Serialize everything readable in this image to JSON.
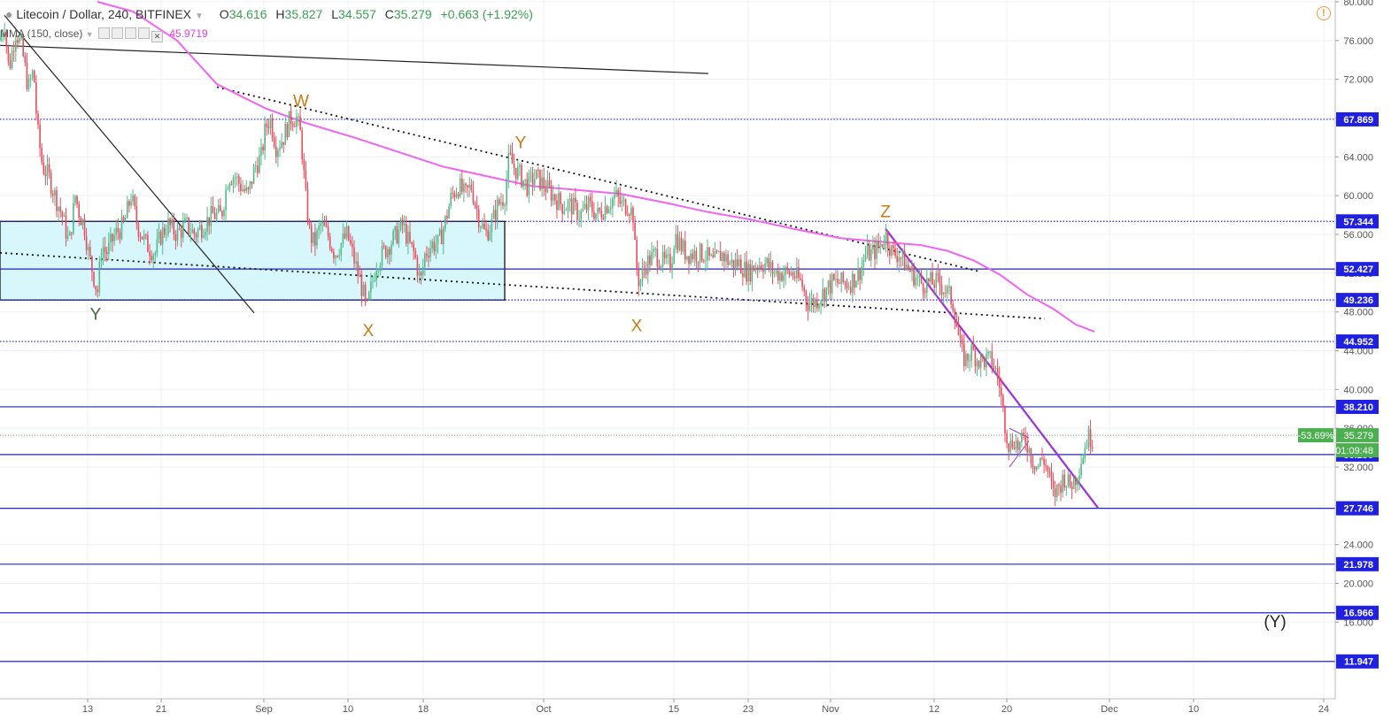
{
  "header": {
    "symbol": "Litecoin / Dollar, 240, BITFINEX",
    "open_label": "O",
    "open": "34.616",
    "high_label": "H",
    "high": "35.827",
    "low_label": "L",
    "low": "34.557",
    "close_label": "C",
    "close": "35.279",
    "change": "+0.663 (+1.92%)"
  },
  "indicator": {
    "label": "MMA (150, close)",
    "value": "45.9719"
  },
  "colors": {
    "up": "#53b987",
    "down": "#eb4d5c",
    "hline": "#2020e0",
    "ma": "#f263f2",
    "trend_purple": "#9b30e0",
    "box_fill": "#d8f7fc",
    "wave_orange": "#c87b12",
    "wave_green": "#3f6e3a",
    "badge_green": "#4caf50"
  },
  "chart_data": {
    "type": "candlestick",
    "title": "Litecoin / Dollar, 240, BITFINEX",
    "ylim": [
      8,
      80
    ],
    "y_ticks": [
      80,
      76,
      72,
      68,
      64,
      60,
      56,
      52,
      48,
      44,
      40,
      36,
      32,
      28,
      24,
      20,
      16
    ],
    "x_ticks": [
      "13",
      "21",
      "Sep",
      "10",
      "18",
      "Oct",
      "15",
      "23",
      "Nov",
      "12",
      "20",
      "Dec",
      "10",
      "24"
    ],
    "price_levels": [
      67.869,
      57.344,
      52.427,
      49.236,
      44.952,
      38.21,
      33.29,
      27.746,
      21.978,
      16.966,
      11.947
    ],
    "last_price": {
      "value": "35.279",
      "change": "-53.69%",
      "countdown": "01:09:48"
    },
    "wave_labels": [
      "W",
      "X",
      "Y",
      "X",
      "Y",
      "Z",
      "(Y)"
    ],
    "price_path": [
      [
        0,
        76
      ],
      [
        5,
        78
      ],
      [
        10,
        73
      ],
      [
        18,
        77
      ],
      [
        25,
        75
      ],
      [
        32,
        71
      ],
      [
        38,
        73
      ],
      [
        42,
        67
      ],
      [
        48,
        63
      ],
      [
        55,
        62
      ],
      [
        62,
        60
      ],
      [
        70,
        58
      ],
      [
        78,
        55
      ],
      [
        85,
        60
      ],
      [
        90,
        58
      ],
      [
        95,
        57
      ],
      [
        100,
        54
      ],
      [
        105,
        52
      ],
      [
        110,
        50
      ],
      [
        115,
        55
      ],
      [
        120,
        54
      ],
      [
        130,
        56
      ],
      [
        140,
        57
      ],
      [
        148,
        60
      ],
      [
        155,
        57
      ],
      [
        165,
        55
      ],
      [
        175,
        54
      ],
      [
        182,
        56
      ],
      [
        190,
        57
      ],
      [
        200,
        56
      ],
      [
        210,
        57
      ],
      [
        220,
        56
      ],
      [
        230,
        57
      ],
      [
        240,
        58
      ],
      [
        250,
        58
      ],
      [
        258,
        62
      ],
      [
        265,
        62
      ],
      [
        272,
        61
      ],
      [
        280,
        60
      ],
      [
        288,
        63
      ],
      [
        295,
        64
      ],
      [
        300,
        67
      ],
      [
        305,
        68
      ],
      [
        312,
        65
      ],
      [
        320,
        66
      ],
      [
        328,
        68
      ],
      [
        335,
        68
      ],
      [
        340,
        66
      ],
      [
        345,
        60
      ],
      [
        350,
        56
      ],
      [
        355,
        55
      ],
      [
        362,
        57
      ],
      [
        370,
        56
      ],
      [
        378,
        54
      ],
      [
        385,
        55
      ],
      [
        392,
        56
      ],
      [
        398,
        54
      ],
      [
        404,
        52
      ],
      [
        410,
        50
      ],
      [
        414,
        48
      ],
      [
        418,
        50
      ],
      [
        425,
        53
      ],
      [
        432,
        54
      ],
      [
        440,
        55
      ],
      [
        448,
        56
      ],
      [
        455,
        57
      ],
      [
        462,
        55
      ],
      [
        468,
        54
      ],
      [
        475,
        51
      ],
      [
        480,
        54
      ],
      [
        488,
        55
      ],
      [
        495,
        55
      ],
      [
        502,
        57
      ],
      [
        510,
        60
      ],
      [
        518,
        61
      ],
      [
        525,
        60
      ],
      [
        532,
        61
      ],
      [
        540,
        58
      ],
      [
        548,
        56
      ],
      [
        555,
        57
      ],
      [
        562,
        59
      ],
      [
        570,
        60
      ],
      [
        575,
        64
      ],
      [
        580,
        63
      ],
      [
        588,
        62
      ],
      [
        595,
        61
      ],
      [
        605,
        62
      ],
      [
        615,
        61
      ],
      [
        625,
        60
      ],
      [
        635,
        59
      ],
      [
        645,
        59
      ],
      [
        655,
        58
      ],
      [
        665,
        59
      ],
      [
        675,
        58
      ],
      [
        685,
        59
      ],
      [
        695,
        60
      ],
      [
        702,
        59
      ],
      [
        710,
        59
      ],
      [
        715,
        58
      ],
      [
        718,
        53
      ],
      [
        722,
        51
      ],
      [
        730,
        53
      ],
      [
        740,
        54
      ],
      [
        750,
        53
      ],
      [
        758,
        53
      ],
      [
        762,
        56
      ],
      [
        768,
        55
      ],
      [
        775,
        54
      ],
      [
        785,
        54
      ],
      [
        795,
        54
      ],
      [
        805,
        53
      ],
      [
        815,
        54
      ],
      [
        825,
        53
      ],
      [
        835,
        53
      ],
      [
        845,
        52
      ],
      [
        855,
        53
      ],
      [
        865,
        53
      ],
      [
        875,
        52
      ],
      [
        885,
        52
      ],
      [
        895,
        52
      ],
      [
        905,
        51
      ],
      [
        912,
        49
      ],
      [
        920,
        49
      ],
      [
        930,
        50
      ],
      [
        940,
        51
      ],
      [
        950,
        51
      ],
      [
        960,
        51
      ],
      [
        970,
        52
      ],
      [
        978,
        54
      ],
      [
        985,
        54
      ],
      [
        995,
        55
      ],
      [
        1000,
        56
      ],
      [
        1008,
        54
      ],
      [
        1015,
        54
      ],
      [
        1022,
        53
      ],
      [
        1030,
        52
      ],
      [
        1040,
        51
      ],
      [
        1050,
        51
      ],
      [
        1060,
        51
      ],
      [
        1070,
        50
      ],
      [
        1076,
        49
      ],
      [
        1080,
        47
      ],
      [
        1085,
        44
      ],
      [
        1090,
        43
      ],
      [
        1098,
        44
      ],
      [
        1105,
        43
      ],
      [
        1112,
        43
      ],
      [
        1120,
        43
      ],
      [
        1128,
        41
      ],
      [
        1134,
        37
      ],
      [
        1140,
        34
      ],
      [
        1145,
        35
      ],
      [
        1150,
        34
      ],
      [
        1158,
        35
      ],
      [
        1165,
        33
      ],
      [
        1172,
        32
      ],
      [
        1178,
        33
      ],
      [
        1185,
        31
      ],
      [
        1190,
        29
      ],
      [
        1196,
        30
      ],
      [
        1202,
        31
      ],
      [
        1208,
        30
      ],
      [
        1215,
        31
      ],
      [
        1222,
        33
      ],
      [
        1228,
        35
      ],
      [
        1234,
        35
      ]
    ],
    "ma_path": [
      [
        110,
        80
      ],
      [
        150,
        79
      ],
      [
        200,
        76
      ],
      [
        245,
        71.5
      ],
      [
        300,
        69
      ],
      [
        345,
        67.5
      ],
      [
        400,
        66
      ],
      [
        450,
        64.5
      ],
      [
        500,
        63
      ],
      [
        550,
        62
      ],
      [
        600,
        61
      ],
      [
        650,
        60.6
      ],
      [
        700,
        60.2
      ],
      [
        750,
        59.3
      ],
      [
        800,
        58.3
      ],
      [
        850,
        57.5
      ],
      [
        900,
        56.5
      ],
      [
        950,
        55.6
      ],
      [
        1000,
        55.2
      ],
      [
        1040,
        54.9
      ],
      [
        1070,
        54.3
      ],
      [
        1100,
        53.3
      ],
      [
        1130,
        51.8
      ],
      [
        1160,
        49.8
      ],
      [
        1190,
        48.3
      ],
      [
        1215,
        46.7
      ],
      [
        1236,
        45.97
      ]
    ],
    "trendlines_dotted": [
      [
        [
          245,
          71.2
        ],
        [
          1105,
          52.2
        ]
      ],
      [
        [
          0,
          54.1
        ],
        [
          1180,
          47.3
        ]
      ]
    ],
    "trendlines_solid": [
      [
        [
          5,
          78.6
        ],
        [
          287,
          47.9
        ]
      ],
      [
        [
          0,
          75.5
        ],
        [
          800,
          72.6
        ]
      ]
    ],
    "trendlines_purple": [
      [
        [
          1000,
          56.6
        ],
        [
          1240,
          27.8
        ]
      ],
      [
        [
          1140,
          36.0
        ],
        [
          1162,
          35.0
        ]
      ],
      [
        [
          1140,
          32.0
        ],
        [
          1162,
          34.7
        ]
      ]
    ],
    "zone_box": {
      "x_from": 0,
      "x_to": 570,
      "y_from": 49.236,
      "y_to": 57.344
    }
  }
}
